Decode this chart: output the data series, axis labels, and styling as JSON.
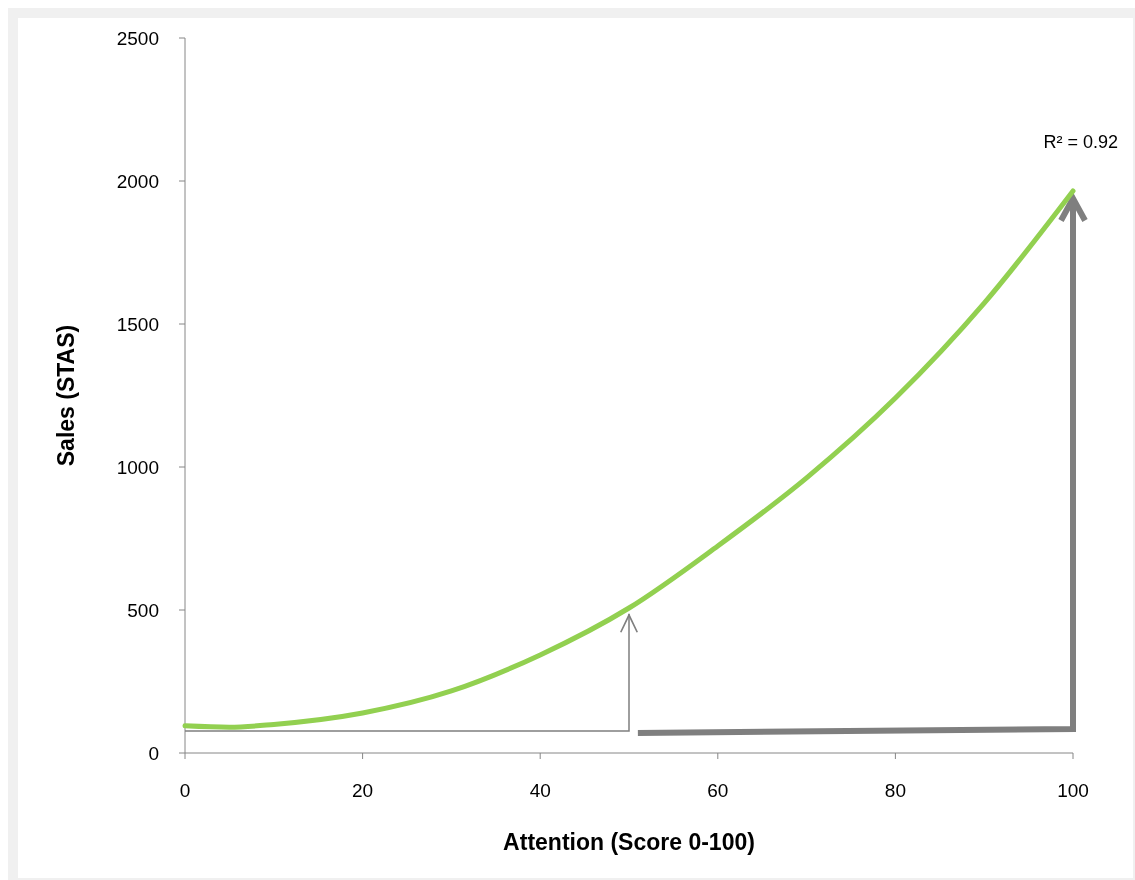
{
  "chart_data": {
    "type": "line",
    "xlabel": "Attention (Score 0-100)",
    "ylabel": "Sales (STAS)",
    "x": [
      0,
      5,
      10,
      20,
      30,
      40,
      50,
      60,
      70,
      80,
      90,
      100
    ],
    "series": [
      {
        "color": "#92d050",
        "values": [
          95,
          90,
          100,
          140,
          217,
          343,
          507,
          724,
          962,
          1241,
          1573,
          1965
        ]
      }
    ],
    "xlim": [
      0,
      100
    ],
    "xticks": [
      0,
      20,
      40,
      60,
      80,
      100
    ],
    "ylim": [
      0,
      2500
    ],
    "yticks": [
      0,
      500,
      1000,
      1500,
      2000,
      2500
    ],
    "grid": false,
    "marker": "none",
    "line_style": "solid",
    "annotations": [
      "R² = 0.92"
    ]
  }
}
